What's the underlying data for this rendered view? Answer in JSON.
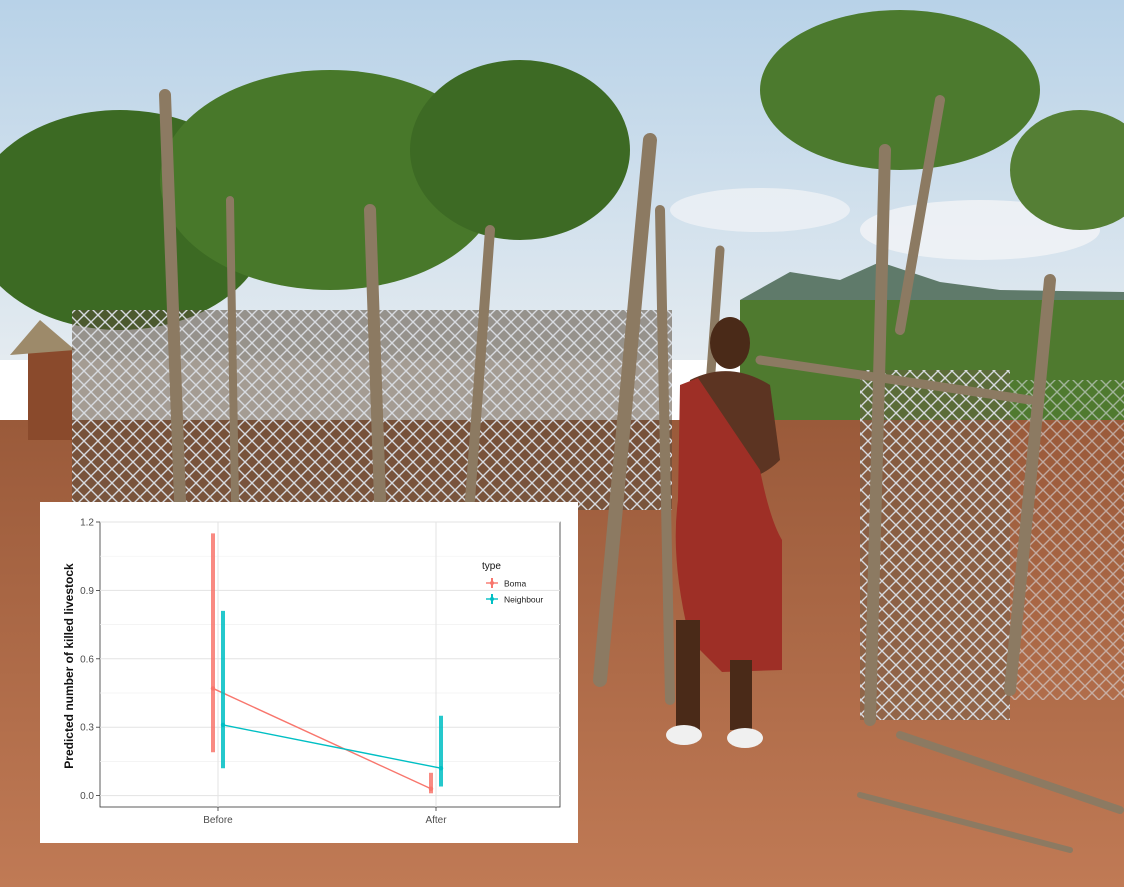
{
  "chart_data": {
    "type": "line",
    "title": "",
    "xlabel": "",
    "ylabel": "Predicted number of killed livestock",
    "categories": [
      "Before",
      "After"
    ],
    "ylim": [
      -0.05,
      1.2
    ],
    "yticks": [
      "0.0",
      "0.3",
      "0.6",
      "0.9",
      "1.2"
    ],
    "grid": true,
    "legend": {
      "title": "type",
      "position": "right"
    },
    "series": [
      {
        "name": "Boma",
        "color": "#F8766D",
        "values": [
          0.47,
          0.03
        ],
        "lower": [
          0.19,
          0.01
        ],
        "upper": [
          1.15,
          0.1
        ]
      },
      {
        "name": "Neighbour",
        "color": "#00BFC4",
        "values": [
          0.31,
          0.12
        ],
        "lower": [
          0.12,
          0.04
        ],
        "upper": [
          0.81,
          0.35
        ]
      }
    ]
  },
  "photo": {
    "sky": "#c9dbe9",
    "soil": "#b0603a",
    "vegetation": "#3f6a25",
    "fence": "#c7cbd0",
    "cloth": "#a3332a",
    "skin": "#5a3220"
  }
}
